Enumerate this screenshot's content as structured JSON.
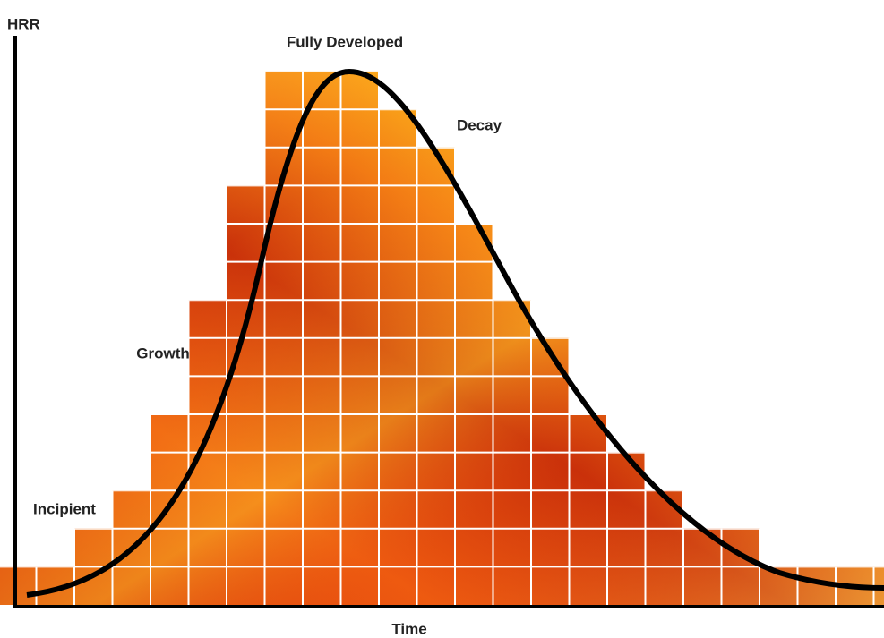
{
  "axes": {
    "y_label": "HRR",
    "x_label": "Time"
  },
  "stages": [
    {
      "label": "Incipient"
    },
    {
      "label": "Growth"
    },
    {
      "label": "Fully Developed"
    },
    {
      "label": "Decay"
    }
  ]
}
